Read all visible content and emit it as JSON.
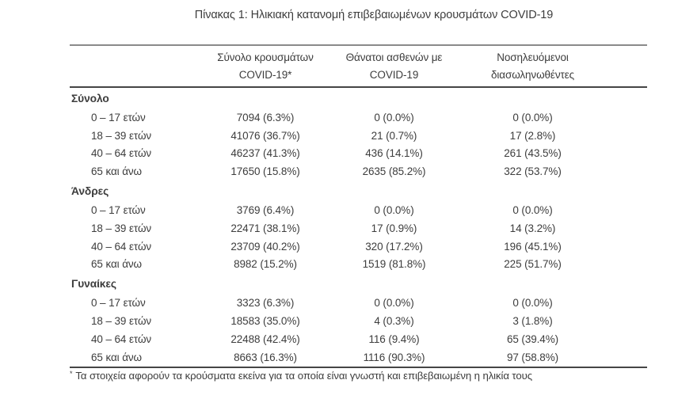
{
  "title": "Πίνακας 1: Ηλικιακή κατανομή επιβεβαιωμένων κρουσμάτων COVID-19",
  "table": {
    "columns": [
      {
        "line1": "Σύνολο κρουσμάτων",
        "line2": "COVID-19*"
      },
      {
        "line1": "Θάνατοι ασθενών με",
        "line2": "COVID-19"
      },
      {
        "line1": "Νοσηλευόμενοι",
        "line2": "διασωληνωθέντες"
      }
    ],
    "sections": [
      {
        "label": "Σύνολο",
        "rows": [
          {
            "age": "0 – 17 ετών",
            "cases": "7094 (6.3%)",
            "deaths": "0 (0.0%)",
            "intubated": "0 (0.0%)"
          },
          {
            "age": "18 – 39 ετών",
            "cases": "41076 (36.7%)",
            "deaths": "21 (0.7%)",
            "intubated": "17 (2.8%)"
          },
          {
            "age": "40 – 64 ετών",
            "cases": "46237 (41.3%)",
            "deaths": "436 (14.1%)",
            "intubated": "261 (43.5%)"
          },
          {
            "age": "65 και άνω",
            "cases": "17650 (15.8%)",
            "deaths": "2635 (85.2%)",
            "intubated": "322 (53.7%)"
          }
        ]
      },
      {
        "label": "Άνδρες",
        "rows": [
          {
            "age": "0 – 17 ετών",
            "cases": "3769 (6.4%)",
            "deaths": "0 (0.0%)",
            "intubated": "0 (0.0%)"
          },
          {
            "age": "18 – 39 ετών",
            "cases": "22471 (38.1%)",
            "deaths": "17 (0.9%)",
            "intubated": "14 (3.2%)"
          },
          {
            "age": "40 – 64 ετών",
            "cases": "23709 (40.2%)",
            "deaths": "320 (17.2%)",
            "intubated": "196 (45.1%)"
          },
          {
            "age": "65 και άνω",
            "cases": "8982 (15.2%)",
            "deaths": "1519 (81.8%)",
            "intubated": "225 (51.7%)"
          }
        ]
      },
      {
        "label": "Γυναίκες",
        "rows": [
          {
            "age": "0 – 17 ετών",
            "cases": "3323 (6.3%)",
            "deaths": "0 (0.0%)",
            "intubated": "0 (0.0%)"
          },
          {
            "age": "18 – 39 ετών",
            "cases": "18583 (35.0%)",
            "deaths": "4 (0.3%)",
            "intubated": "3 (1.8%)"
          },
          {
            "age": "40 – 64 ετών",
            "cases": "22488 (42.4%)",
            "deaths": "116 (9.4%)",
            "intubated": "65 (39.4%)"
          },
          {
            "age": "65 και άνω",
            "cases": "8663 (16.3%)",
            "deaths": "1116 (90.3%)",
            "intubated": "97 (58.8%)"
          }
        ]
      }
    ]
  },
  "footnote": {
    "marker": "*",
    "text": "Τα στοιχεία αφορούν τα κρούσματα εκείνα για τα οποία είναι γνωστή και επιβεβαιωμένη η ηλικία τους"
  }
}
